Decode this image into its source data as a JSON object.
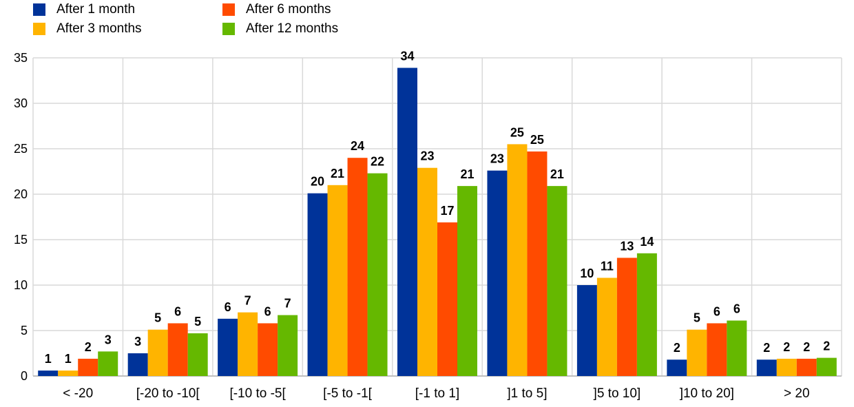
{
  "chart_data": {
    "type": "bar",
    "title": "",
    "xlabel": "",
    "ylabel": "",
    "ylim": [
      0,
      35
    ],
    "yticks": [
      0,
      5,
      10,
      15,
      20,
      25,
      30,
      35
    ],
    "grid": true,
    "legend_position": "top-left",
    "categories": [
      "< -20",
      "[-20 to -10[",
      "[-10 to -5[",
      "[-5 to -1[",
      "[-1 to 1]",
      "]1 to 5]",
      "]5 to 10]",
      "]10 to 20]",
      "> 20"
    ],
    "series": [
      {
        "name": "After 1 month",
        "color": "#003399",
        "values": [
          0.6,
          2.5,
          6.3,
          20.1,
          33.9,
          22.6,
          10.0,
          1.8,
          1.8
        ],
        "labels": [
          "1",
          "3",
          "6",
          "20",
          "34",
          "23",
          "10",
          "2",
          "2"
        ]
      },
      {
        "name": "After 3 months",
        "color": "#FFB400",
        "values": [
          0.6,
          5.1,
          7.0,
          21.0,
          22.9,
          25.5,
          10.8,
          5.1,
          1.9
        ],
        "labels": [
          "1",
          "5",
          "7",
          "21",
          "23",
          "25",
          "11",
          "5",
          "2"
        ]
      },
      {
        "name": "After 6 months",
        "color": "#FF4B00",
        "values": [
          1.9,
          5.8,
          5.8,
          24.0,
          16.9,
          24.7,
          13.0,
          5.8,
          1.9
        ],
        "labels": [
          "2",
          "6",
          "6",
          "24",
          "17",
          "25",
          "13",
          "6",
          "2"
        ]
      },
      {
        "name": "After 12 months",
        "color": "#65B800",
        "values": [
          2.7,
          4.7,
          6.7,
          22.3,
          20.9,
          20.9,
          13.5,
          6.1,
          2.0
        ],
        "labels": [
          "3",
          "5",
          "7",
          "22",
          "21",
          "21",
          "14",
          "6",
          "2"
        ]
      }
    ]
  }
}
